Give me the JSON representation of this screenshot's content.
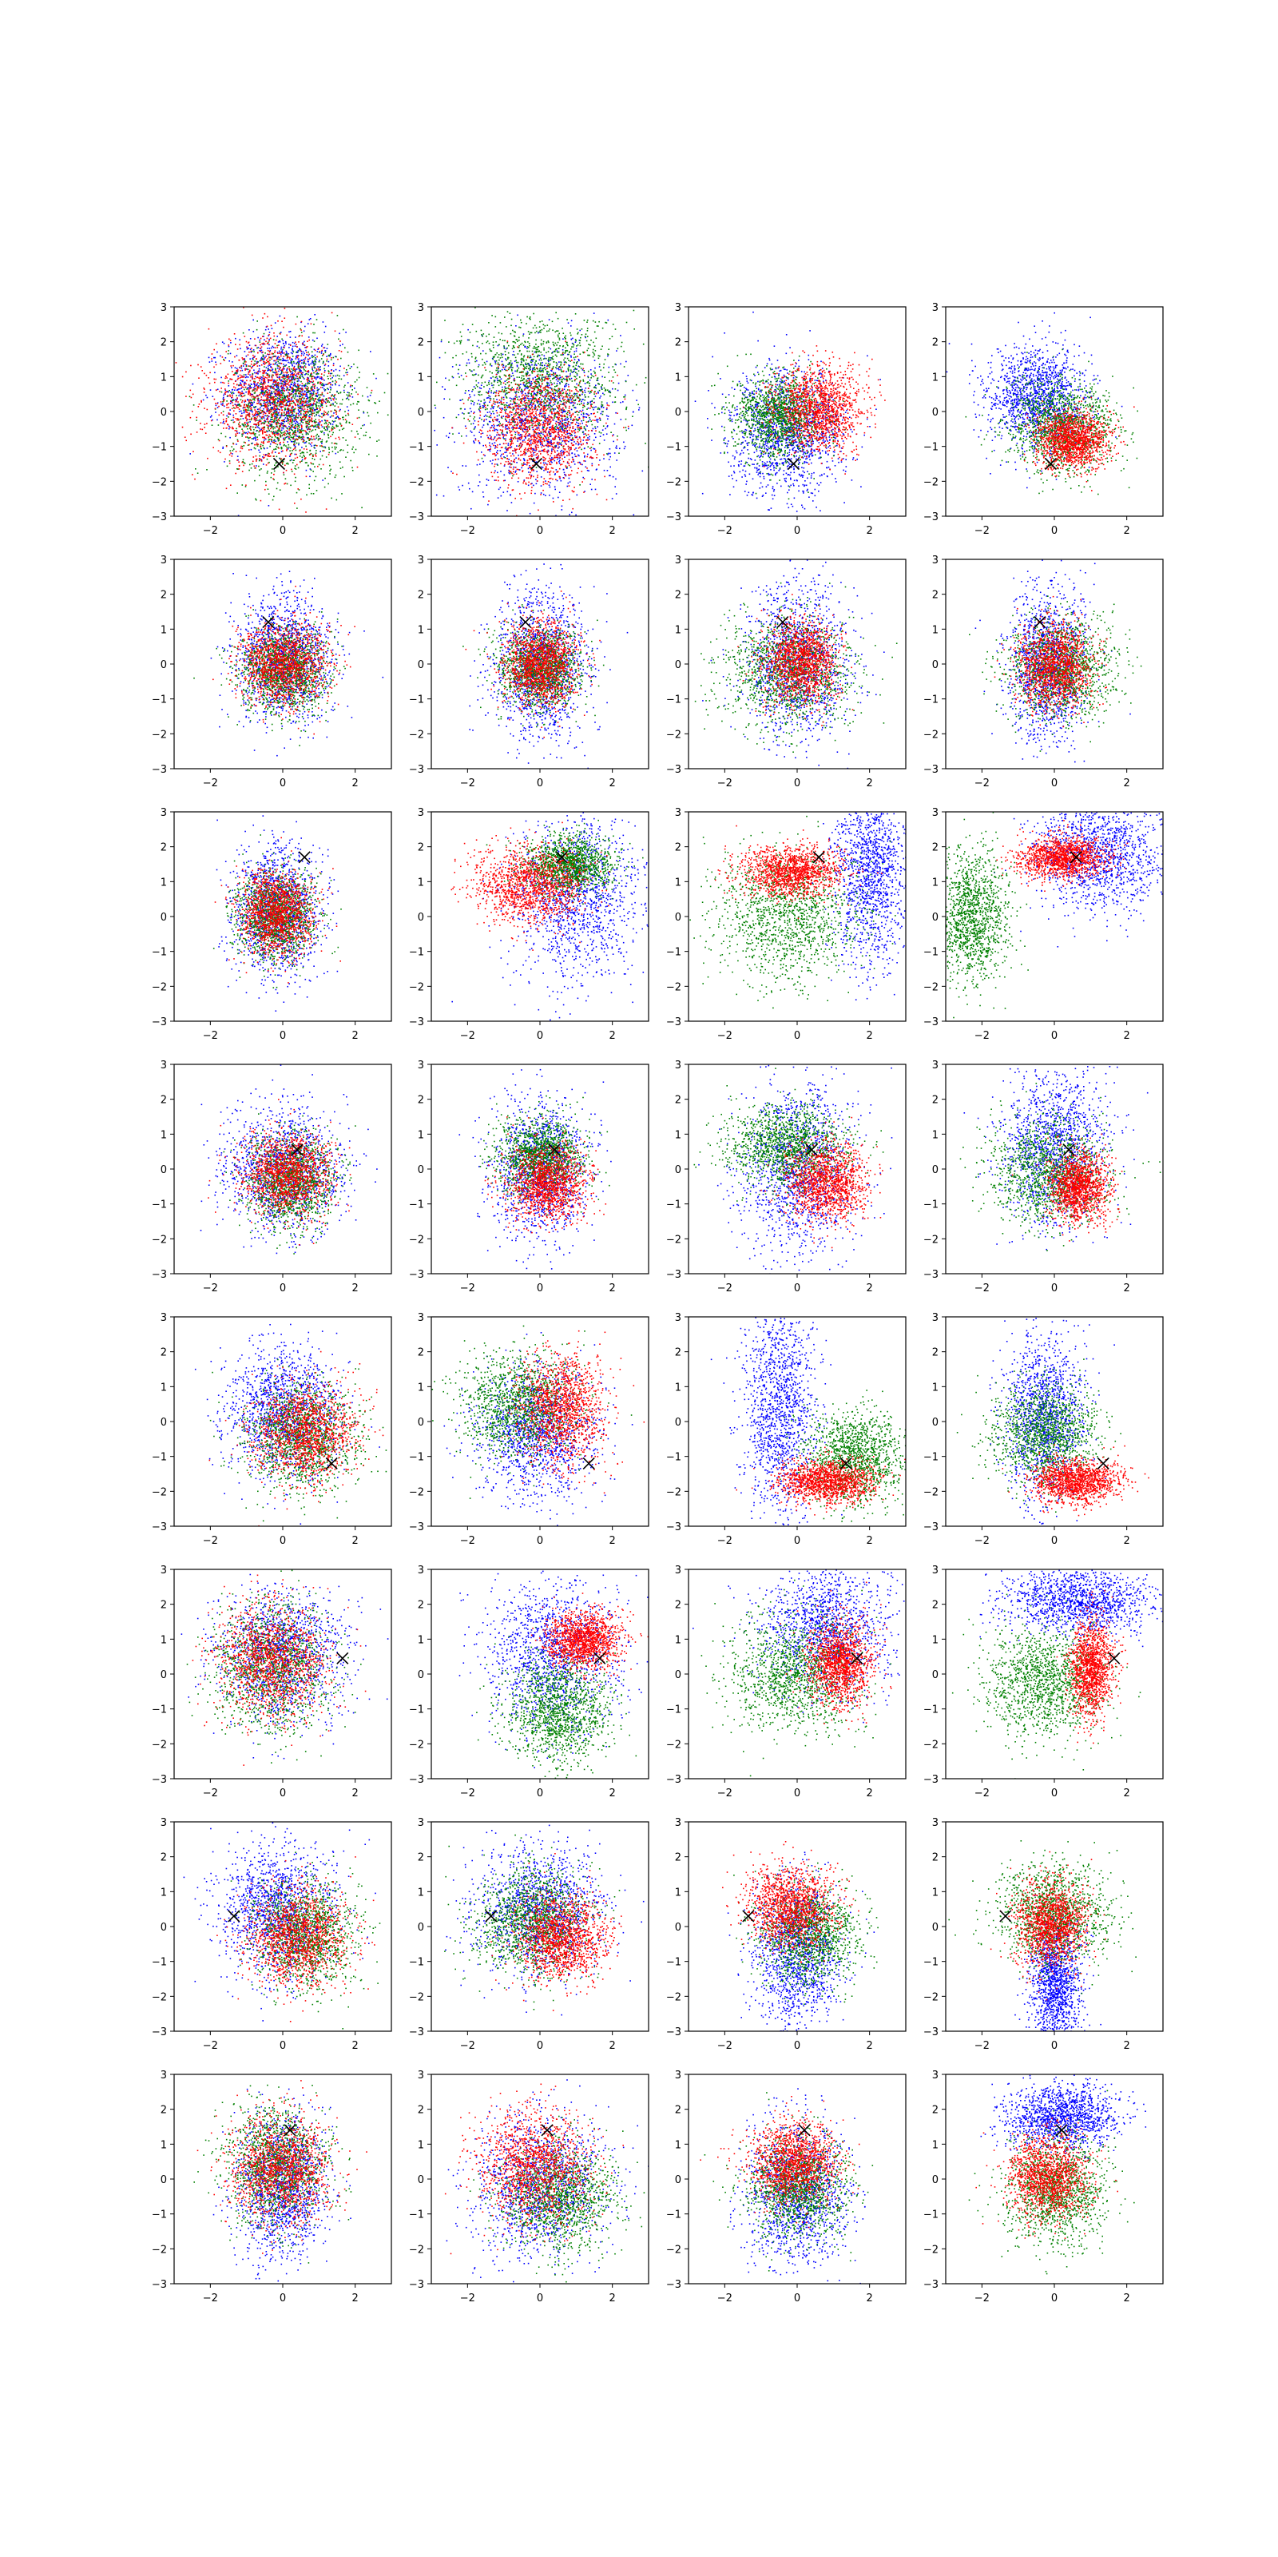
{
  "chart_data": {
    "type": "scatter",
    "layout": "grid",
    "rows": 8,
    "cols": 4,
    "xlim": [
      -3,
      3
    ],
    "ylim": [
      -3,
      3
    ],
    "xticks": [
      -2,
      0,
      2
    ],
    "yticks": [
      -3,
      -2,
      -1,
      0,
      1,
      2,
      3
    ],
    "grid": false,
    "legend": "none",
    "colors": {
      "blue": "#0000ff",
      "green": "#008000",
      "red": "#ff0000",
      "marker": "#000000"
    },
    "marker_style": "x",
    "panel_markers": [
      {
        "row": 1,
        "x": -0.1,
        "y": -1.5
      },
      {
        "row": 2,
        "x": -0.4,
        "y": 1.2
      },
      {
        "row": 3,
        "x": 0.6,
        "y": 1.7
      },
      {
        "row": 4,
        "x": 0.4,
        "y": 0.55
      },
      {
        "row": 5,
        "x": 1.35,
        "y": -1.2
      },
      {
        "row": 6,
        "x": 1.65,
        "y": 0.45
      },
      {
        "row": 7,
        "x": -1.35,
        "y": 0.3
      },
      {
        "row": 8,
        "x": 0.2,
        "y": 1.4
      }
    ],
    "panels": [
      {
        "r": 1,
        "c": 1,
        "s": [
          {
            "c": "blue",
            "mx": 0,
            "my": 0.6,
            "sx": 0.8,
            "sy": 0.85
          },
          {
            "c": "green",
            "mx": 0.3,
            "my": 0,
            "sx": 0.9,
            "sy": 0.95
          },
          {
            "c": "red",
            "mx": -0.3,
            "my": 0.3,
            "sx": 0.9,
            "sy": 0.9
          }
        ]
      },
      {
        "r": 1,
        "c": 2,
        "s": [
          {
            "c": "blue",
            "mx": 0,
            "my": -0.2,
            "sx": 1.1,
            "sy": 1.1
          },
          {
            "c": "green",
            "mx": 0,
            "my": 1.0,
            "sx": 1.1,
            "sy": 0.9
          },
          {
            "c": "red",
            "mx": 0,
            "my": -0.5,
            "sx": 0.75,
            "sy": 0.8
          }
        ]
      },
      {
        "r": 1,
        "c": 3,
        "s": [
          {
            "c": "blue",
            "mx": -0.3,
            "my": -0.6,
            "sx": 0.8,
            "sy": 0.9
          },
          {
            "c": "green",
            "mx": -0.5,
            "my": -0.1,
            "sx": 0.6,
            "sy": 0.6
          },
          {
            "c": "red",
            "mx": 0.6,
            "my": 0.1,
            "sx": 0.6,
            "sy": 0.6
          }
        ]
      },
      {
        "r": 1,
        "c": 4,
        "s": [
          {
            "c": "blue",
            "mx": -0.5,
            "my": 0.4,
            "sx": 0.7,
            "sy": 0.75
          },
          {
            "c": "green",
            "mx": 0.2,
            "my": -0.4,
            "sx": 0.75,
            "sy": 0.65
          },
          {
            "c": "red",
            "mx": 0.5,
            "my": -0.8,
            "sx": 0.5,
            "sy": 0.4
          }
        ]
      },
      {
        "r": 2,
        "c": 1,
        "s": [
          {
            "c": "blue",
            "mx": 0,
            "my": 0.2,
            "sx": 0.65,
            "sy": 0.9
          },
          {
            "c": "green",
            "mx": 0,
            "my": -0.2,
            "sx": 0.6,
            "sy": 0.6
          },
          {
            "c": "red",
            "mx": 0,
            "my": 0,
            "sx": 0.6,
            "sy": 0.6
          }
        ]
      },
      {
        "r": 2,
        "c": 2,
        "s": [
          {
            "c": "blue",
            "mx": 0,
            "my": 0,
            "sx": 0.65,
            "sy": 1.05
          },
          {
            "c": "green",
            "mx": 0,
            "my": -0.1,
            "sx": 0.55,
            "sy": 0.55
          },
          {
            "c": "red",
            "mx": 0,
            "my": 0,
            "sx": 0.5,
            "sy": 0.6
          }
        ]
      },
      {
        "r": 2,
        "c": 3,
        "s": [
          {
            "c": "blue",
            "mx": 0,
            "my": 0,
            "sx": 0.7,
            "sy": 1.1
          },
          {
            "c": "green",
            "mx": -0.2,
            "my": -0.2,
            "sx": 0.9,
            "sy": 0.8
          },
          {
            "c": "red",
            "mx": 0.1,
            "my": 0.1,
            "sx": 0.5,
            "sy": 0.6
          }
        ]
      },
      {
        "r": 2,
        "c": 4,
        "s": [
          {
            "c": "blue",
            "mx": -0.2,
            "my": 0,
            "sx": 0.55,
            "sy": 1.1
          },
          {
            "c": "green",
            "mx": 0.2,
            "my": -0.1,
            "sx": 0.75,
            "sy": 0.7
          },
          {
            "c": "red",
            "mx": 0,
            "my": 0,
            "sx": 0.5,
            "sy": 0.6
          }
        ]
      },
      {
        "r": 3,
        "c": 1,
        "s": [
          {
            "c": "blue",
            "mx": -0.2,
            "my": 0.2,
            "sx": 0.6,
            "sy": 0.9
          },
          {
            "c": "green",
            "mx": -0.2,
            "my": 0,
            "sx": 0.55,
            "sy": 0.6
          },
          {
            "c": "red",
            "mx": -0.2,
            "my": 0.1,
            "sx": 0.5,
            "sy": 0.6
          }
        ]
      },
      {
        "r": 3,
        "c": 2,
        "s": [
          {
            "c": "blue",
            "mx": 1.0,
            "my": 0.5,
            "sx": 0.9,
            "sy": 1.2
          },
          {
            "c": "green",
            "mx": 0.8,
            "my": 1.5,
            "sx": 0.6,
            "sy": 0.4
          },
          {
            "c": "red",
            "mx": -0.3,
            "my": 0.9,
            "sx": 0.75,
            "sy": 0.55
          }
        ]
      },
      {
        "r": 3,
        "c": 3,
        "s": [
          {
            "c": "blue",
            "mx": 2.0,
            "my": 1.2,
            "sx": 0.5,
            "sy": 1.3
          },
          {
            "c": "green",
            "mx": -0.3,
            "my": 0,
            "sx": 1.0,
            "sy": 0.9
          },
          {
            "c": "red",
            "mx": -0.2,
            "my": 1.3,
            "sx": 0.7,
            "sy": 0.35
          }
        ]
      },
      {
        "r": 3,
        "c": 4,
        "s": [
          {
            "c": "blue",
            "mx": 1.2,
            "my": 1.8,
            "sx": 0.9,
            "sy": 0.8
          },
          {
            "c": "green",
            "mx": -2.3,
            "my": 0,
            "sx": 0.5,
            "sy": 0.9
          },
          {
            "c": "red",
            "mx": 0.2,
            "my": 1.7,
            "sx": 0.6,
            "sy": 0.3
          }
        ]
      },
      {
        "r": 4,
        "c": 1,
        "s": [
          {
            "c": "blue",
            "mx": 0,
            "my": 0,
            "sx": 0.8,
            "sy": 0.9
          },
          {
            "c": "green",
            "mx": 0.2,
            "my": -0.3,
            "sx": 0.6,
            "sy": 0.65
          },
          {
            "c": "red",
            "mx": 0.1,
            "my": -0.1,
            "sx": 0.6,
            "sy": 0.6
          }
        ]
      },
      {
        "r": 4,
        "c": 2,
        "s": [
          {
            "c": "blue",
            "mx": 0,
            "my": 0,
            "sx": 0.65,
            "sy": 1.0
          },
          {
            "c": "green",
            "mx": 0,
            "my": 0.4,
            "sx": 0.6,
            "sy": 0.55
          },
          {
            "c": "red",
            "mx": 0.2,
            "my": -0.4,
            "sx": 0.55,
            "sy": 0.55
          }
        ]
      },
      {
        "r": 4,
        "c": 3,
        "s": [
          {
            "c": "blue",
            "mx": 0,
            "my": 0,
            "sx": 0.8,
            "sy": 1.2
          },
          {
            "c": "green",
            "mx": -0.3,
            "my": 0.7,
            "sx": 0.8,
            "sy": 0.6
          },
          {
            "c": "red",
            "mx": 0.8,
            "my": -0.4,
            "sx": 0.55,
            "sy": 0.55
          }
        ]
      },
      {
        "r": 4,
        "c": 4,
        "s": [
          {
            "c": "blue",
            "mx": 0,
            "my": 0.7,
            "sx": 0.75,
            "sy": 1.1
          },
          {
            "c": "green",
            "mx": -0.2,
            "my": -0.1,
            "sx": 0.8,
            "sy": 0.75
          },
          {
            "c": "red",
            "mx": 0.7,
            "my": -0.5,
            "sx": 0.4,
            "sy": 0.5
          }
        ]
      },
      {
        "r": 5,
        "c": 1,
        "s": [
          {
            "c": "blue",
            "mx": 0,
            "my": 0.3,
            "sx": 0.8,
            "sy": 0.9
          },
          {
            "c": "green",
            "mx": 0.5,
            "my": -0.4,
            "sx": 0.75,
            "sy": 0.75
          },
          {
            "c": "red",
            "mx": 0.6,
            "my": -0.3,
            "sx": 0.7,
            "sy": 0.7
          }
        ]
      },
      {
        "r": 5,
        "c": 2,
        "s": [
          {
            "c": "blue",
            "mx": -0.1,
            "my": -0.3,
            "sx": 0.8,
            "sy": 0.9
          },
          {
            "c": "green",
            "mx": -0.6,
            "my": 0.5,
            "sx": 0.8,
            "sy": 0.75
          },
          {
            "c": "red",
            "mx": 0.6,
            "my": 0.4,
            "sx": 0.6,
            "sy": 0.8
          }
        ]
      },
      {
        "r": 5,
        "c": 3,
        "s": [
          {
            "c": "blue",
            "mx": -0.5,
            "my": 0.5,
            "sx": 0.5,
            "sy": 1.5
          },
          {
            "c": "green",
            "mx": 1.6,
            "my": -1.0,
            "sx": 0.7,
            "sy": 0.7
          },
          {
            "c": "red",
            "mx": 0.8,
            "my": -1.7,
            "sx": 0.65,
            "sy": 0.3
          }
        ]
      },
      {
        "r": 5,
        "c": 4,
        "s": [
          {
            "c": "blue",
            "mx": -0.3,
            "my": 0.2,
            "sx": 0.55,
            "sy": 1.2
          },
          {
            "c": "green",
            "mx": -0.3,
            "my": -0.3,
            "sx": 0.75,
            "sy": 0.7
          },
          {
            "c": "red",
            "mx": 0.6,
            "my": -1.7,
            "sx": 0.6,
            "sy": 0.3
          }
        ]
      },
      {
        "r": 6,
        "c": 1,
        "s": [
          {
            "c": "blue",
            "mx": 0,
            "my": 0.6,
            "sx": 0.9,
            "sy": 0.9
          },
          {
            "c": "green",
            "mx": -0.3,
            "my": 0.2,
            "sx": 0.8,
            "sy": 0.9
          },
          {
            "c": "red",
            "mx": -0.3,
            "my": 0.4,
            "sx": 0.75,
            "sy": 0.8
          }
        ]
      },
      {
        "r": 6,
        "c": 2,
        "s": [
          {
            "c": "blue",
            "mx": 0.4,
            "my": 0.6,
            "sx": 0.9,
            "sy": 1.1
          },
          {
            "c": "green",
            "mx": 0.5,
            "my": -1.0,
            "sx": 0.7,
            "sy": 0.75
          },
          {
            "c": "red",
            "mx": 1.2,
            "my": 1.0,
            "sx": 0.5,
            "sy": 0.4
          }
        ]
      },
      {
        "r": 6,
        "c": 3,
        "s": [
          {
            "c": "blue",
            "mx": 0.8,
            "my": 1.4,
            "sx": 0.9,
            "sy": 0.9
          },
          {
            "c": "green",
            "mx": -0.1,
            "my": 0,
            "sx": 0.9,
            "sy": 0.8
          },
          {
            "c": "red",
            "mx": 1.2,
            "my": 0.3,
            "sx": 0.45,
            "sy": 0.6
          }
        ]
      },
      {
        "r": 6,
        "c": 4,
        "s": [
          {
            "c": "blue",
            "mx": 0.7,
            "my": 2.1,
            "sx": 1.0,
            "sy": 0.45
          },
          {
            "c": "green",
            "mx": -0.3,
            "my": -0.2,
            "sx": 0.8,
            "sy": 0.8
          },
          {
            "c": "red",
            "mx": 1.0,
            "my": 0.2,
            "sx": 0.3,
            "sy": 0.7
          }
        ]
      },
      {
        "r": 7,
        "c": 1,
        "s": [
          {
            "c": "blue",
            "mx": -0.2,
            "my": 0.5,
            "sx": 0.8,
            "sy": 0.9
          },
          {
            "c": "green",
            "mx": 0.6,
            "my": -0.2,
            "sx": 0.7,
            "sy": 0.75
          },
          {
            "c": "red",
            "mx": 0.4,
            "my": -0.3,
            "sx": 0.7,
            "sy": 0.7
          }
        ]
      },
      {
        "r": 7,
        "c": 2,
        "s": [
          {
            "c": "blue",
            "mx": 0,
            "my": 0.5,
            "sx": 0.9,
            "sy": 0.9
          },
          {
            "c": "green",
            "mx": -0.3,
            "my": 0.2,
            "sx": 0.8,
            "sy": 0.75
          },
          {
            "c": "red",
            "mx": 0.6,
            "my": -0.3,
            "sx": 0.6,
            "sy": 0.6
          }
        ]
      },
      {
        "r": 7,
        "c": 3,
        "s": [
          {
            "c": "blue",
            "mx": 0,
            "my": -0.8,
            "sx": 0.6,
            "sy": 1.0
          },
          {
            "c": "green",
            "mx": 0.3,
            "my": -0.2,
            "sx": 0.7,
            "sy": 0.7
          },
          {
            "c": "red",
            "mx": -0.2,
            "my": 0.6,
            "sx": 0.6,
            "sy": 0.6
          }
        ]
      },
      {
        "r": 7,
        "c": 4,
        "s": [
          {
            "c": "blue",
            "mx": 0,
            "my": -1.6,
            "sx": 0.35,
            "sy": 0.9
          },
          {
            "c": "green",
            "mx": 0,
            "my": 0.4,
            "sx": 0.8,
            "sy": 0.7
          },
          {
            "c": "red",
            "mx": -0.1,
            "my": 0.1,
            "sx": 0.5,
            "sy": 0.6
          }
        ]
      },
      {
        "r": 8,
        "c": 1,
        "s": [
          {
            "c": "blue",
            "mx": 0,
            "my": -0.2,
            "sx": 0.6,
            "sy": 1.0
          },
          {
            "c": "green",
            "mx": -0.2,
            "my": 0.4,
            "sx": 0.7,
            "sy": 0.8
          },
          {
            "c": "red",
            "mx": -0.1,
            "my": 0.3,
            "sx": 0.7,
            "sy": 0.75
          }
        ]
      },
      {
        "r": 8,
        "c": 2,
        "s": [
          {
            "c": "blue",
            "mx": 0,
            "my": -0.2,
            "sx": 0.9,
            "sy": 1.0
          },
          {
            "c": "green",
            "mx": 0.5,
            "my": -0.5,
            "sx": 0.8,
            "sy": 0.75
          },
          {
            "c": "red",
            "mx": -0.2,
            "my": 0.4,
            "sx": 0.8,
            "sy": 0.8
          }
        ]
      },
      {
        "r": 8,
        "c": 3,
        "s": [
          {
            "c": "blue",
            "mx": 0,
            "my": -0.5,
            "sx": 0.7,
            "sy": 1.0
          },
          {
            "c": "green",
            "mx": 0,
            "my": -0.2,
            "sx": 0.7,
            "sy": 0.7
          },
          {
            "c": "red",
            "mx": -0.1,
            "my": 0.5,
            "sx": 0.6,
            "sy": 0.55
          }
        ]
      },
      {
        "r": 8,
        "c": 4,
        "s": [
          {
            "c": "blue",
            "mx": 0.2,
            "my": 1.8,
            "sx": 0.8,
            "sy": 0.45
          },
          {
            "c": "green",
            "mx": 0,
            "my": -0.3,
            "sx": 0.7,
            "sy": 0.75
          },
          {
            "c": "red",
            "mx": -0.2,
            "my": 0.1,
            "sx": 0.55,
            "sy": 0.6
          }
        ]
      }
    ]
  }
}
